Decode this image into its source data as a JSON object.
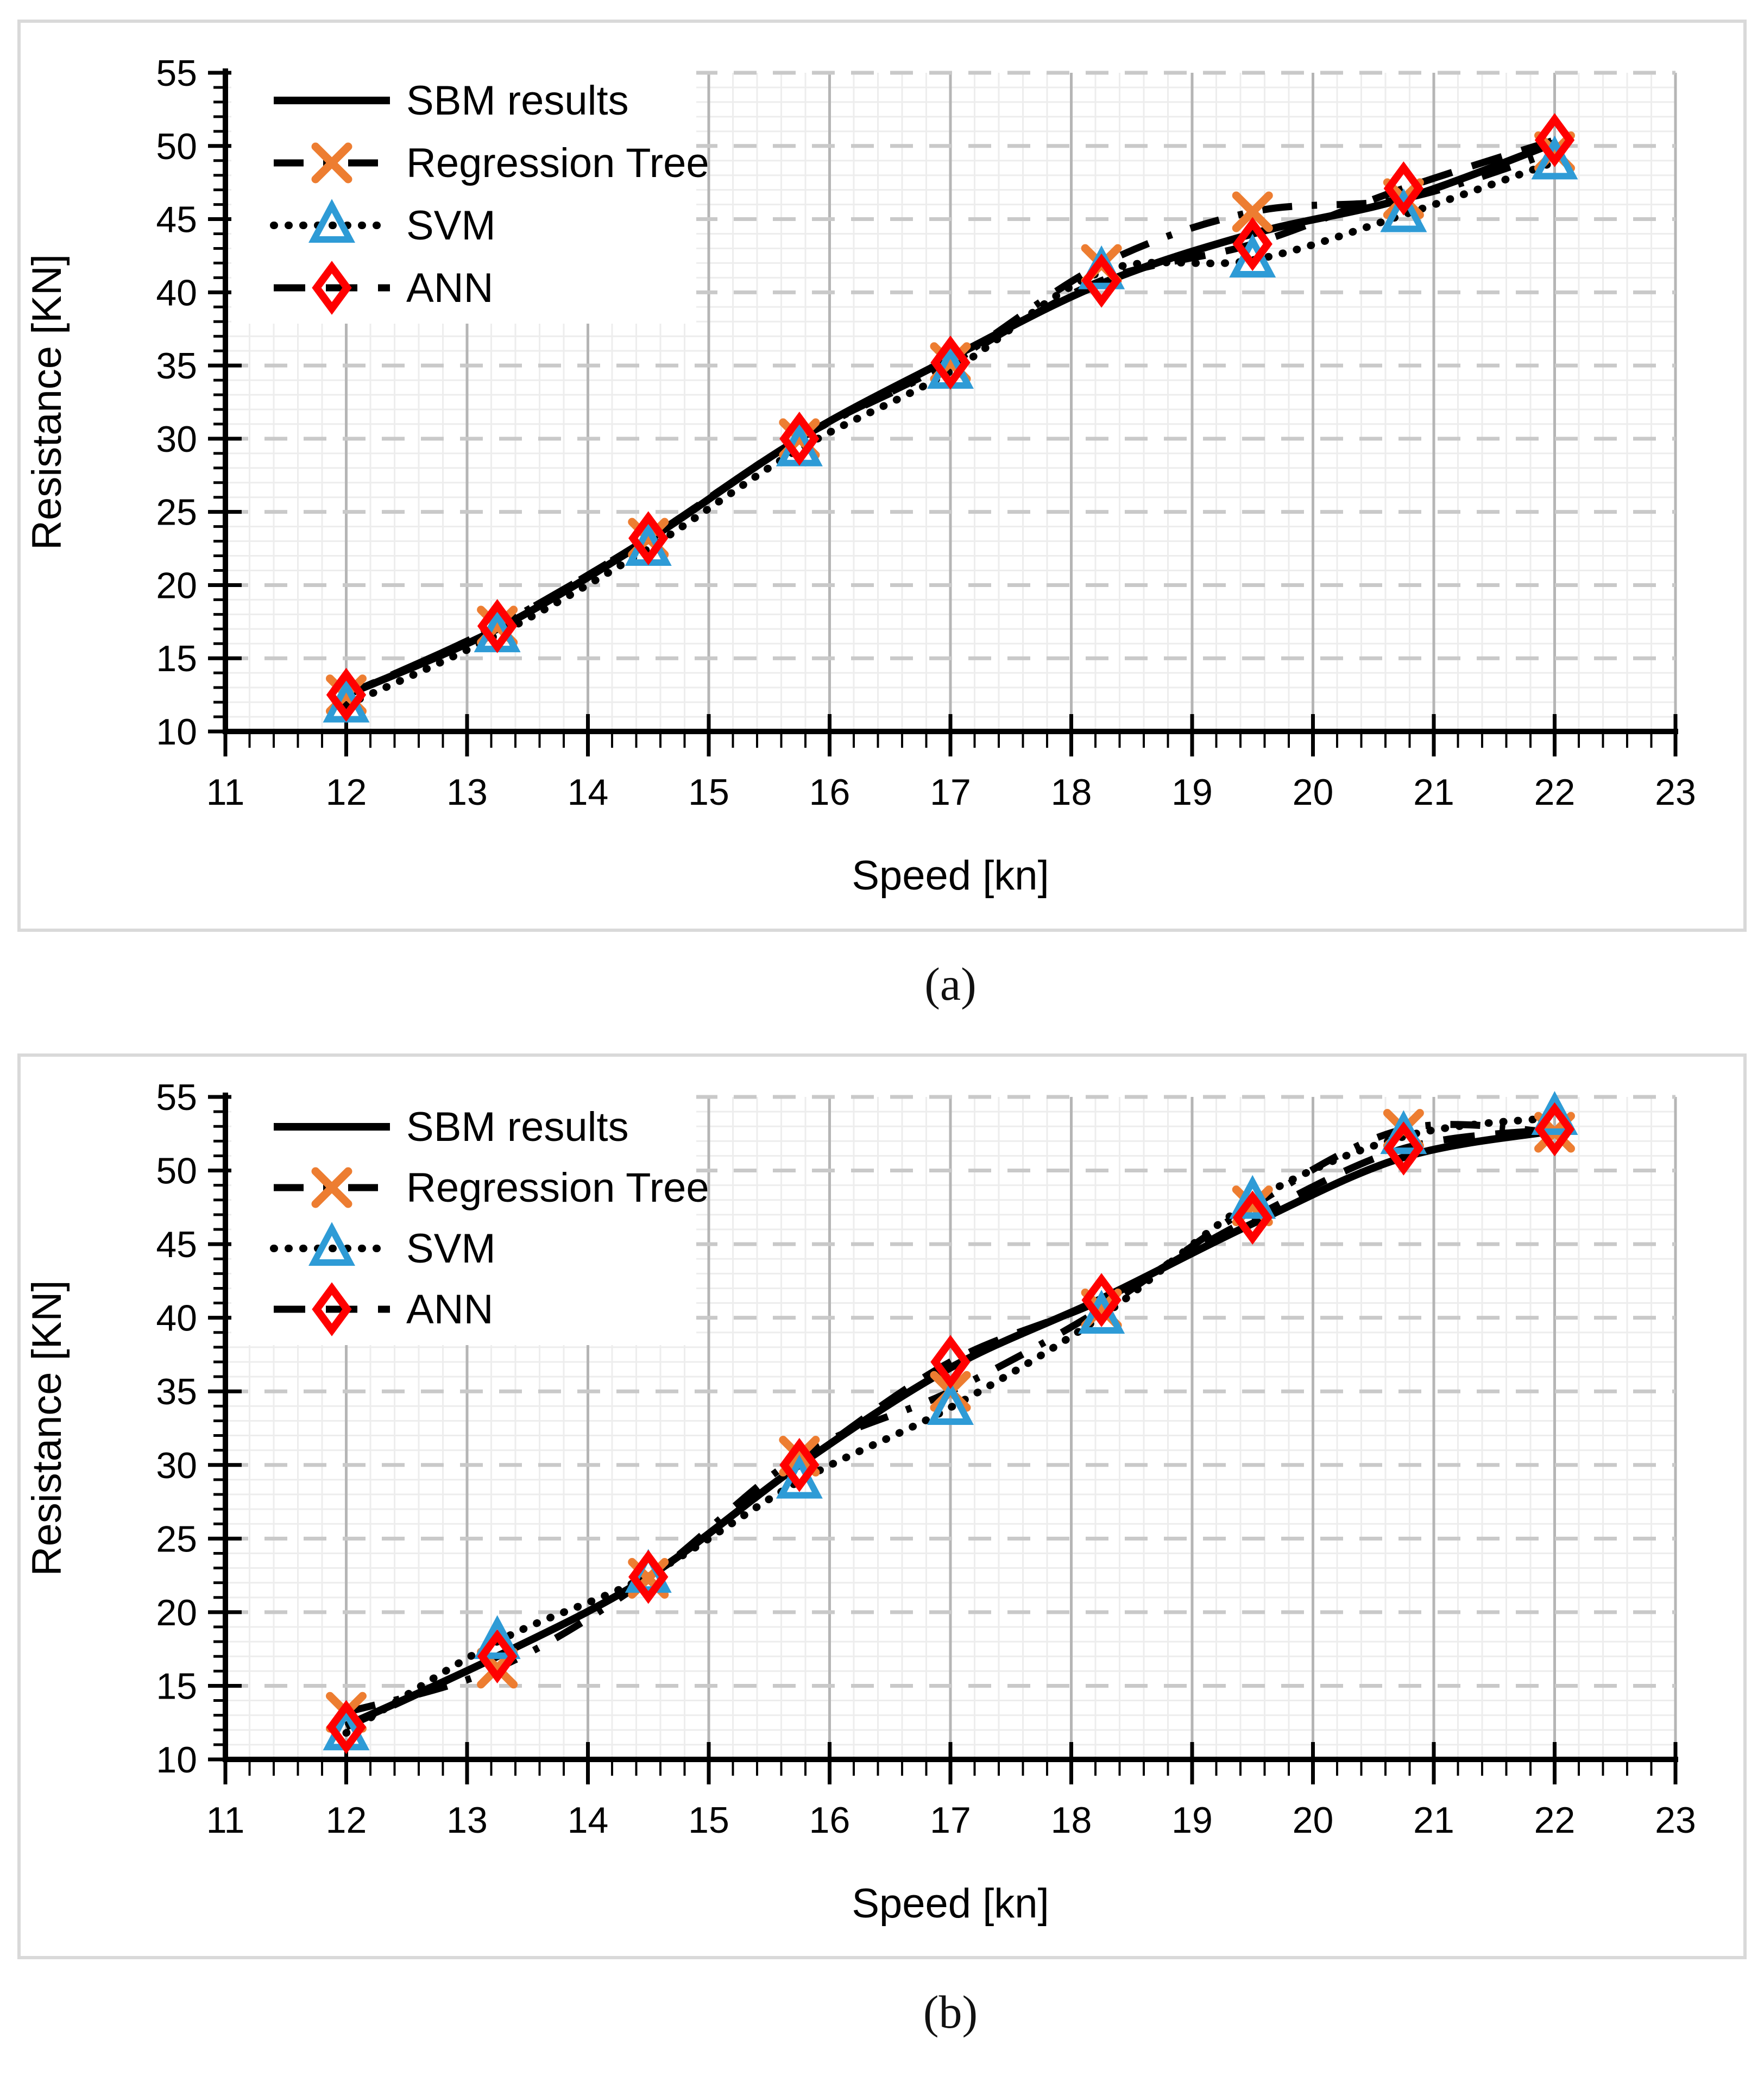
{
  "figure": {
    "captions": {
      "a": "(a)",
      "b": "(b)"
    }
  },
  "chart_data": [
    {
      "id": "a",
      "type": "line",
      "title": "(a)",
      "xlabel": "Speed [kn]",
      "ylabel": "Resistance [KN]",
      "xlim": [
        11,
        23
      ],
      "ylim": [
        10,
        55
      ],
      "x_ticks": [
        11,
        12,
        13,
        14,
        15,
        16,
        17,
        18,
        19,
        20,
        21,
        22,
        23
      ],
      "y_ticks": [
        10,
        15,
        20,
        25,
        30,
        35,
        40,
        45,
        50,
        55
      ],
      "x_minor_step": 0.2,
      "y_minor_step": 1,
      "grid": "on",
      "legend_position": "top-left",
      "x": [
        12,
        13.25,
        14.5,
        15.75,
        17,
        18.25,
        19.5,
        20.75,
        22
      ],
      "series": [
        {
          "name": "SBM results",
          "line": "solid",
          "marker": "none",
          "line_color": "#000000",
          "marker_color": "#000000",
          "values": [
            12.5,
            17.0,
            23.1,
            30.0,
            35.5,
            40.6,
            44.0,
            46.4,
            50.2
          ]
        },
        {
          "name": "Regression Tree",
          "line": "dashdot",
          "marker": "x",
          "line_color": "#000000",
          "marker_color": "#ED7D31",
          "values": [
            12.5,
            17.2,
            23.2,
            30.0,
            35.2,
            41.9,
            45.5,
            46.4,
            49.6
          ]
        },
        {
          "name": "SVM",
          "line": "dotted",
          "marker": "triangle",
          "line_color": "#000000",
          "marker_color": "#2E9BD6",
          "values": [
            11.8,
            16.6,
            22.5,
            29.3,
            34.6,
            41.4,
            42.2,
            45.3,
            48.9
          ]
        },
        {
          "name": "ANN",
          "line": "dashed",
          "marker": "diamond",
          "line_color": "#000000",
          "marker_color": "#FF0000",
          "values": [
            12.5,
            17.2,
            23.2,
            30.0,
            35.2,
            40.8,
            43.3,
            47.1,
            50.4
          ]
        }
      ]
    },
    {
      "id": "b",
      "type": "line",
      "title": "(b)",
      "xlabel": "Speed [kn]",
      "ylabel": "Resistance [KN]",
      "xlim": [
        11,
        23
      ],
      "ylim": [
        10,
        55
      ],
      "x_ticks": [
        11,
        12,
        13,
        14,
        15,
        16,
        17,
        18,
        19,
        20,
        21,
        22,
        23
      ],
      "y_ticks": [
        10,
        15,
        20,
        25,
        30,
        35,
        40,
        45,
        50,
        55
      ],
      "x_minor_step": 0.2,
      "y_minor_step": 1,
      "grid": "on",
      "legend_position": "top-left",
      "x": [
        12,
        13.25,
        14.5,
        15.75,
        17,
        18.25,
        19.5,
        20.75,
        22
      ],
      "series": [
        {
          "name": "SBM results",
          "line": "solid",
          "marker": "none",
          "line_color": "#000000",
          "marker_color": "#000000",
          "values": [
            12.3,
            17.0,
            22.4,
            30.0,
            36.6,
            41.3,
            46.4,
            50.9,
            52.7
          ]
        },
        {
          "name": "Regression Tree",
          "line": "dashdot",
          "marker": "x",
          "line_color": "#000000",
          "marker_color": "#ED7D31",
          "values": [
            13.2,
            16.2,
            22.3,
            30.6,
            35.0,
            40.6,
            47.6,
            52.8,
            52.6
          ]
        },
        {
          "name": "SVM",
          "line": "dotted",
          "marker": "triangle",
          "line_color": "#000000",
          "marker_color": "#2E9BD6",
          "values": [
            11.8,
            18.0,
            22.5,
            28.9,
            33.9,
            40.1,
            47.9,
            52.3,
            53.6
          ]
        },
        {
          "name": "ANN",
          "line": "dashed",
          "marker": "diamond",
          "line_color": "#000000",
          "marker_color": "#FF0000",
          "values": [
            12.2,
            17.0,
            22.4,
            30.0,
            37.0,
            41.2,
            46.8,
            51.5,
            52.8
          ]
        }
      ]
    }
  ]
}
